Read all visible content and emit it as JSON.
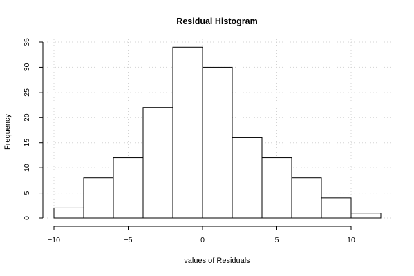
{
  "chart_data": {
    "type": "bar",
    "title": "Residual Histogram",
    "xlabel": "values of Residuals",
    "ylabel": "Frequency",
    "bins": [
      {
        "from": -10,
        "to": -8,
        "count": 2
      },
      {
        "from": -8,
        "to": -6,
        "count": 8
      },
      {
        "from": -6,
        "to": -4,
        "count": 12
      },
      {
        "from": -4,
        "to": -2,
        "count": 22
      },
      {
        "from": -2,
        "to": 0,
        "count": 34
      },
      {
        "from": 0,
        "to": 2,
        "count": 30
      },
      {
        "from": 2,
        "to": 4,
        "count": 16
      },
      {
        "from": 4,
        "to": 6,
        "count": 12
      },
      {
        "from": 6,
        "to": 8,
        "count": 8
      },
      {
        "from": 8,
        "to": 10,
        "count": 4
      },
      {
        "from": 10,
        "to": 12,
        "count": 1
      }
    ],
    "xlim": [
      -10,
      12
    ],
    "ylim": [
      0,
      35
    ],
    "xticks": [
      -10,
      -5,
      0,
      5,
      10
    ],
    "xtick_labels": [
      "−10",
      "−5",
      "0",
      "5",
      "10"
    ],
    "yticks": [
      0,
      5,
      10,
      15,
      20,
      25,
      30,
      35
    ],
    "ytick_labels": [
      "0",
      "5",
      "10",
      "15",
      "20",
      "25",
      "30",
      "35"
    ],
    "grid": true,
    "colors": {
      "bar_fill": "#ffffff",
      "bar_stroke": "#000000",
      "grid": "#d3d3d3"
    }
  }
}
